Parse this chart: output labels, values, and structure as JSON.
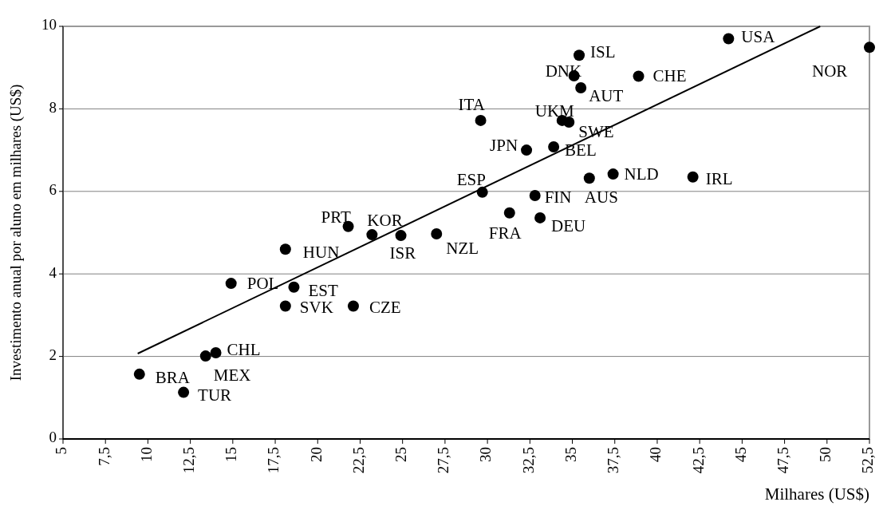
{
  "chart_data": {
    "type": "scatter",
    "xlabel": "Milhares (US$)",
    "ylabel": "Investimento anual por aluno em milhares (US$)",
    "xlim": [
      5,
      52.5
    ],
    "ylim": [
      0,
      10
    ],
    "xticks": [
      5,
      {
        "value": 7.5,
        "label": "7,5"
      },
      10,
      {
        "value": 12.5,
        "label": "12,5"
      },
      15,
      {
        "value": 17.5,
        "label": "17,5"
      },
      20,
      {
        "value": 22.5,
        "label": "22,5"
      },
      25,
      {
        "value": 27.5,
        "label": "27,5"
      },
      30,
      {
        "value": 32.5,
        "label": "32,5"
      },
      35,
      {
        "value": 37.5,
        "label": "37,5"
      },
      40,
      {
        "value": 42.5,
        "label": "42,5"
      },
      45,
      {
        "value": 47.5,
        "label": "47,5"
      },
      50,
      {
        "value": 52.5,
        "label": "52,5"
      }
    ],
    "yticks": [
      0,
      2,
      4,
      6,
      8,
      10
    ],
    "grid": "y",
    "marker": "circle",
    "series": [
      {
        "color": "#000000",
        "x": [
          9.5,
          12.1,
          13.4,
          14.0,
          14.9,
          18.6,
          18.1,
          22.1,
          18.1,
          21.8,
          23.2,
          24.9,
          27.0,
          29.7,
          29.6,
          31.3,
          33.1,
          32.8,
          32.3,
          33.9,
          34.4,
          34.8,
          35.1,
          35.5,
          35.4,
          38.9,
          36.0,
          37.4,
          42.1,
          44.2,
          52.5
        ],
        "values": [
          1.57,
          1.13,
          2.01,
          2.09,
          3.77,
          3.68,
          3.22,
          3.22,
          4.6,
          5.15,
          4.95,
          4.93,
          4.97,
          5.98,
          7.72,
          5.48,
          5.36,
          5.9,
          7.0,
          7.08,
          7.72,
          7.68,
          8.8,
          8.51,
          9.3,
          8.79,
          6.32,
          6.42,
          6.35,
          9.7,
          9.49
        ],
        "value_labels": [
          "BRA",
          "TUR",
          "MEX",
          "CHL",
          "POL",
          "EST",
          "SVK",
          "CZE",
          "HUN",
          "PRT",
          "KOR",
          "ISR",
          "NZL",
          "ESP",
          "ITA",
          "FRA",
          "DEU",
          "FIN",
          "JPN",
          "BEL",
          "UKM",
          "SWE",
          "DNK",
          "AUT",
          "ISL",
          "CHE",
          "AUS",
          "NLD",
          "IRL",
          "USA",
          "NOR"
        ]
      },
      {
        "type": "line",
        "color": "#000000",
        "x": [
          9.4,
          49.6
        ],
        "values": [
          2.07,
          10
        ],
        "marker": "none"
      }
    ]
  }
}
